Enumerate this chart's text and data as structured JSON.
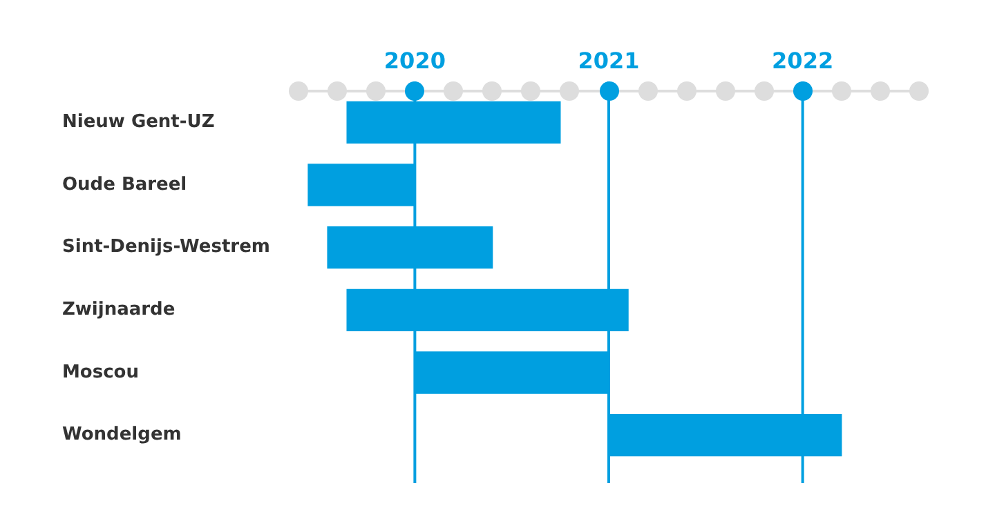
{
  "chart_data": {
    "type": "bar",
    "orientation": "horizontal",
    "categories": [
      "Nieuw Gent-UZ",
      "Oude Bareel",
      "Sint-Denijs-Westrem",
      "Zwijnaarde",
      "Moscou",
      "Wondelgem"
    ],
    "base": [
      2019.65,
      2019.45,
      2019.55,
      2019.65,
      2020,
      2021
    ],
    "values": [
      1.1,
      0.55,
      0.85,
      1.45,
      1,
      1.2
    ],
    "color": "#009fe0",
    "xlim": [
      2019.4,
      2022.6
    ],
    "xticks": [
      {
        "value": 2019.4,
        "label": null
      },
      {
        "value": 2019.6,
        "label": null
      },
      {
        "value": 2019.8,
        "label": null
      },
      2020,
      {
        "value": 2020.2,
        "label": null
      },
      {
        "value": 2020.4,
        "label": null
      },
      {
        "value": 2020.6,
        "label": null
      },
      {
        "value": 2020.8,
        "label": null
      },
      2021,
      {
        "value": 2021.2,
        "label": null
      },
      {
        "value": 2021.4,
        "label": null
      },
      {
        "value": 2021.6,
        "label": null
      },
      {
        "value": 2021.8,
        "label": null
      },
      2022,
      {
        "value": 2022.2,
        "label": null
      },
      {
        "value": 2022.4,
        "label": null
      },
      {
        "value": 2022.6,
        "label": null
      }
    ],
    "ref_lines": [
      {
        "axis": "x",
        "value": 2020,
        "color": "#009fe0"
      },
      {
        "axis": "x",
        "value": 2021,
        "color": "#009fe0"
      },
      {
        "axis": "x",
        "value": 2022,
        "color": "#009fe0"
      }
    ],
    "grid": false,
    "legend": false
  }
}
